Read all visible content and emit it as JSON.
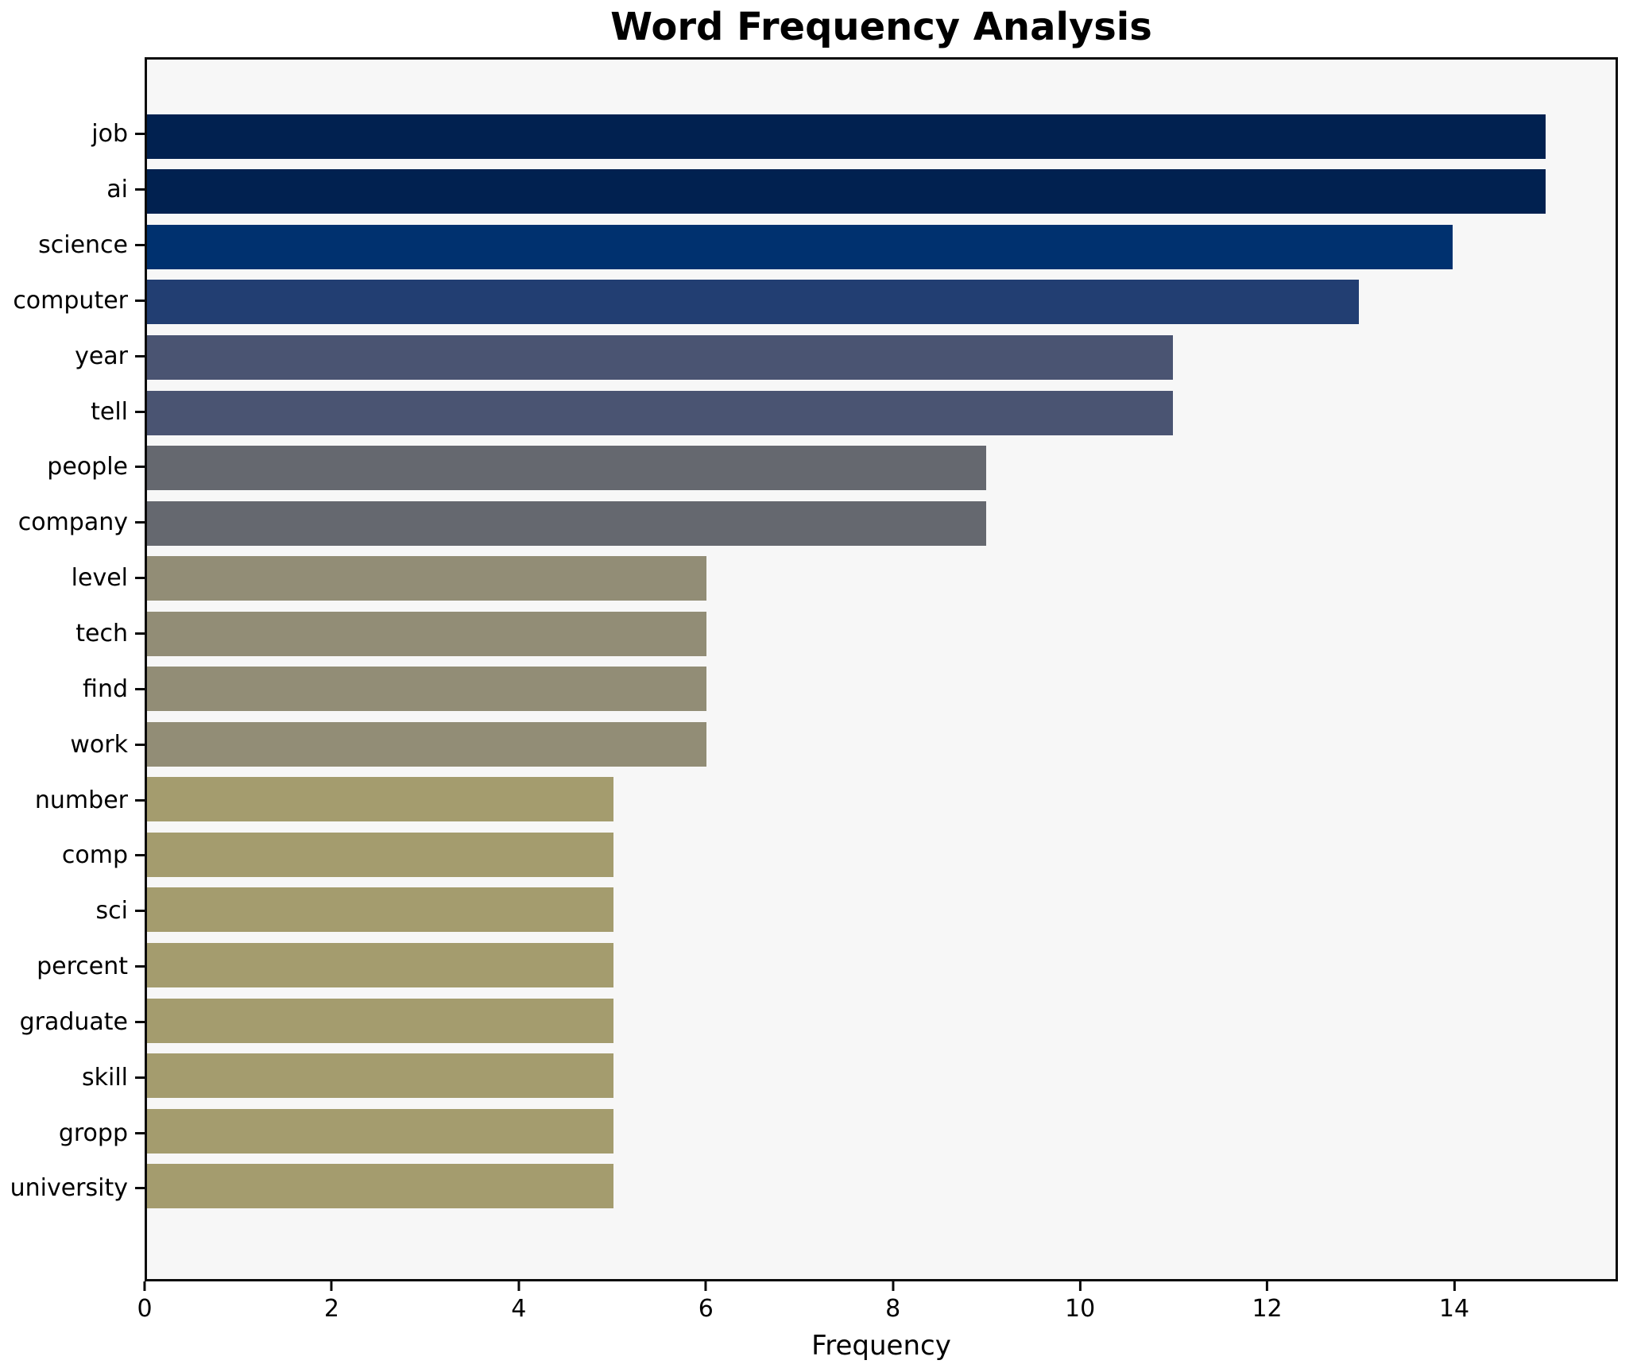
{
  "title": "Word Frequency Analysis",
  "chart_data": {
    "type": "bar",
    "orientation": "horizontal",
    "title": "Word Frequency Analysis",
    "xlabel": "Frequency",
    "ylabel": "",
    "xlim": [
      0,
      15.75
    ],
    "xticks": [
      0,
      2,
      4,
      6,
      8,
      10,
      12,
      14
    ],
    "grid": false,
    "legend": false,
    "categories": [
      "job",
      "ai",
      "science",
      "computer",
      "year",
      "tell",
      "people",
      "company",
      "level",
      "tech",
      "find",
      "work",
      "number",
      "comp",
      "sci",
      "percent",
      "graduate",
      "skill",
      "gropp",
      "university"
    ],
    "values": [
      15,
      15,
      14,
      13,
      11,
      11,
      9,
      9,
      6,
      6,
      6,
      6,
      5,
      5,
      5,
      5,
      5,
      5,
      5,
      5
    ],
    "bar_colors": [
      "#012150",
      "#012150",
      "#00316f",
      "#223e72",
      "#4a5472",
      "#4a5472",
      "#65686f",
      "#65686f",
      "#928d76",
      "#928d76",
      "#928d76",
      "#928d76",
      "#a49c6e",
      "#a49c6e",
      "#a49c6e",
      "#a49c6e",
      "#a49c6e",
      "#a49c6e",
      "#a49c6e",
      "#a49c6e"
    ],
    "colors": {
      "figure_background": "#ffffff",
      "plot_background": "#f7f7f7",
      "spine": "#0a0a0a",
      "text": "#000000"
    }
  }
}
